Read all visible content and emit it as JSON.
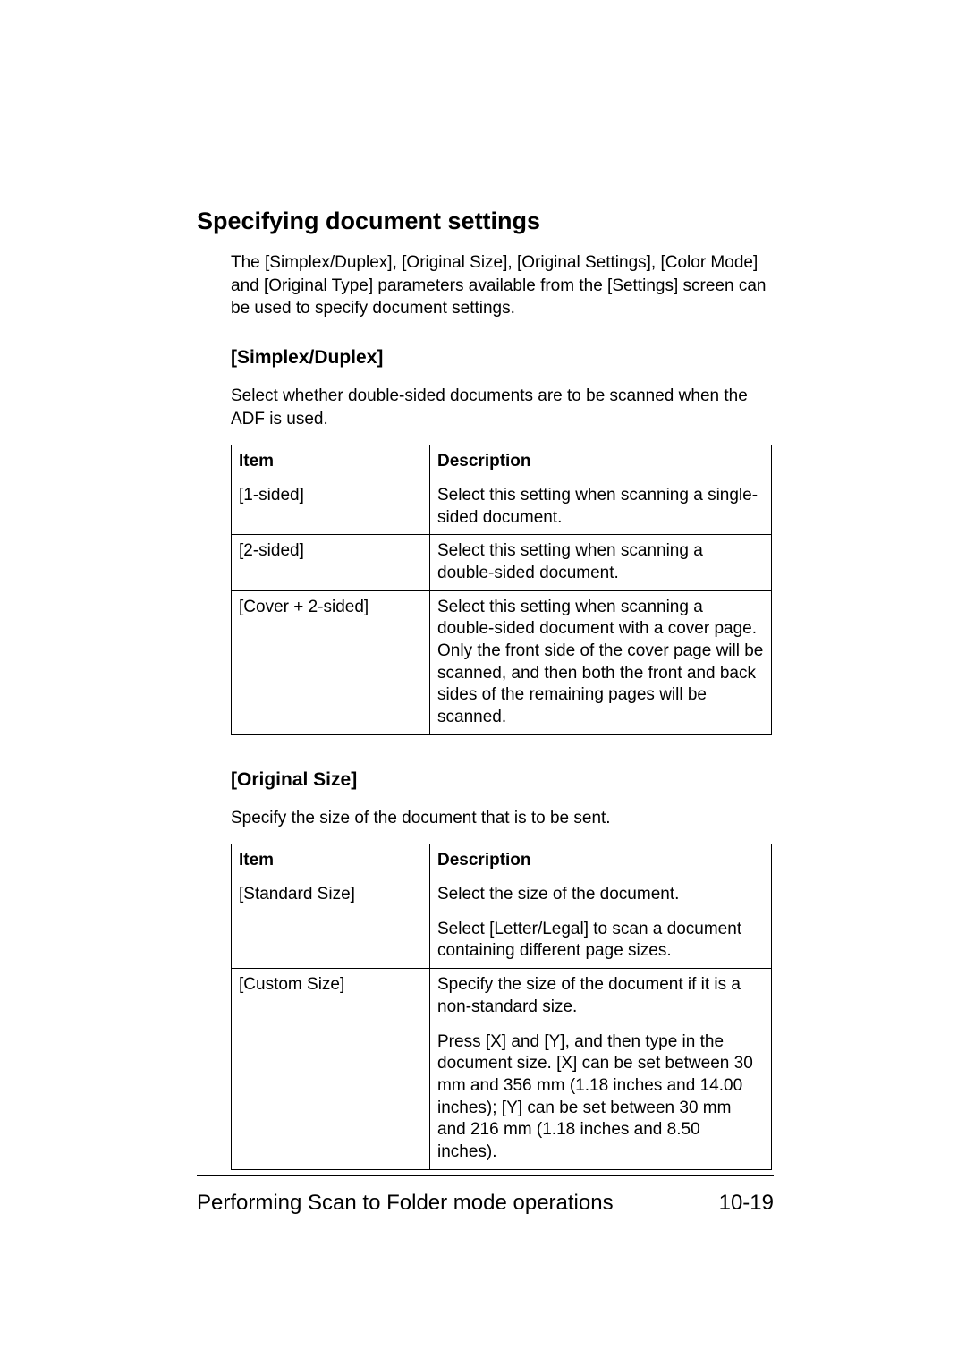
{
  "section_title": "Specifying document settings",
  "intro": "The [Simplex/Duplex], [Original Size], [Original Settings], [Color Mode] and [Original Type] parameters available from the [Settings] screen can be used to specify document settings.",
  "simplex": {
    "heading": "[Simplex/Duplex]",
    "lead": "Select whether double-sided documents are to be scanned when the ADF is used.",
    "col_item": "Item",
    "col_desc": "Description",
    "rows": [
      {
        "item": "[1-sided]",
        "desc": "Select this setting when scanning a single-sided document."
      },
      {
        "item": "[2-sided]",
        "desc": "Select this setting when scanning a double-sided document."
      },
      {
        "item": "[Cover + 2-sided]",
        "desc": "Select this setting when scanning a double-sided document with a cover page. Only the front side of the cover page will be scanned, and then both the front and back sides of the remaining pages will be scanned."
      }
    ]
  },
  "origsize": {
    "heading": "[Original Size]",
    "lead": "Specify the size of the document that is to be sent.",
    "col_item": "Item",
    "col_desc": "Description",
    "rows": [
      {
        "item": "[Standard Size]",
        "desc1": "Select the size of the document.",
        "desc2": "Select [Letter/Legal] to scan a document containing different page sizes."
      },
      {
        "item": "[Custom Size]",
        "desc1": "Specify the size of the document if it is a non-standard size.",
        "desc2": "Press [X] and [Y], and then type in the document size. [X] can be set between 30 mm and 356 mm (1.18 inches and 14.00 inches); [Y] can be set between 30 mm and 216 mm (1.18 inches and 8.50 inches)."
      }
    ]
  },
  "footer": {
    "title": "Performing Scan to Folder mode operations",
    "page": "10-19"
  }
}
